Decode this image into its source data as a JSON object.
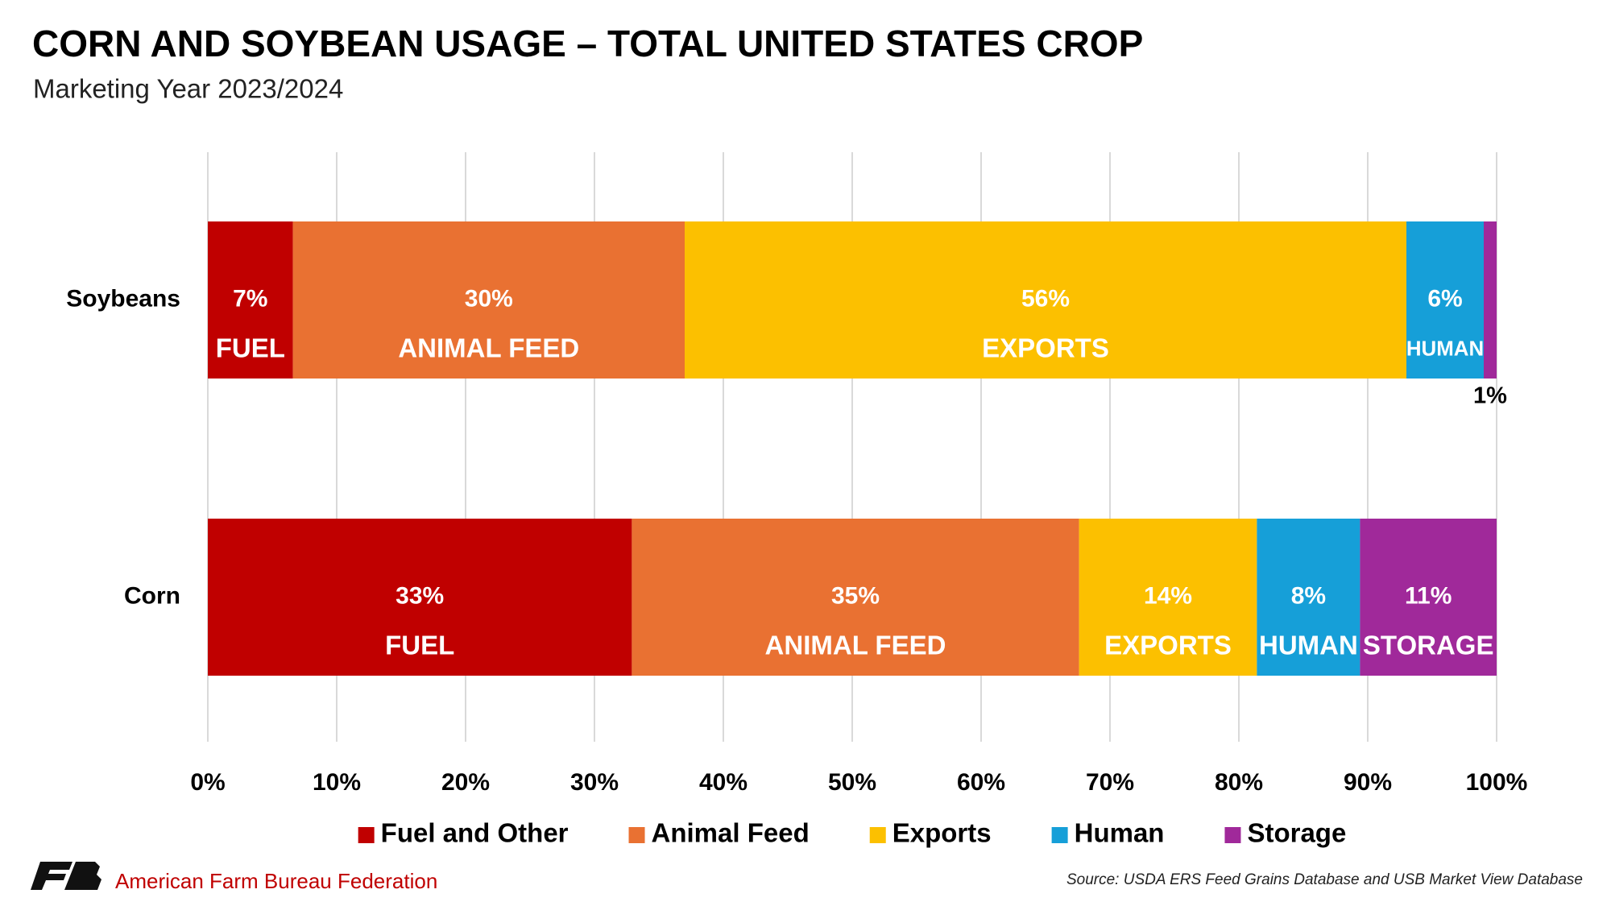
{
  "chart_data": {
    "type": "stacked-bar-horizontal",
    "title": "CORN AND SOYBEAN USAGE – TOTAL UNITED STATES CROP",
    "subtitle": "Marketing Year 2023/2024",
    "categories": [
      "Soybeans",
      "Corn"
    ],
    "series": [
      {
        "name": "Fuel and Other",
        "color": "#c00000",
        "values": [
          6.6,
          32.9
        ],
        "value_labels": [
          "7%",
          "33%"
        ],
        "segment_labels": [
          "FUEL",
          "FUEL"
        ]
      },
      {
        "name": "Animal Feed",
        "color": "#e97132",
        "values": [
          30.4,
          34.7
        ],
        "value_labels": [
          "30%",
          "35%"
        ],
        "segment_labels": [
          "ANIMAL FEED",
          "ANIMAL FEED"
        ]
      },
      {
        "name": "Exports",
        "color": "#fcc000",
        "values": [
          56,
          13.8
        ],
        "value_labels": [
          "56%",
          "14%"
        ],
        "segment_labels": [
          "EXPORTS",
          "EXPORTS"
        ]
      },
      {
        "name": "Human",
        "color": "#169fd8",
        "values": [
          6,
          8.0
        ],
        "value_labels": [
          "6%",
          "8%"
        ],
        "segment_labels": [
          "HUMAN",
          "HUMAN"
        ]
      },
      {
        "name": "Storage",
        "color": "#a0299a",
        "values": [
          1,
          10.6
        ],
        "value_labels": [
          "1%",
          "11%"
        ],
        "segment_labels": [
          null,
          "STORAGE"
        ]
      }
    ],
    "xlim": [
      0,
      100
    ],
    "xticks": [
      {
        "value": 0,
        "label": "0%"
      },
      {
        "value": 10,
        "label": "10%"
      },
      {
        "value": 20,
        "label": "20%"
      },
      {
        "value": 30,
        "label": "30%"
      },
      {
        "value": 40,
        "label": "40%"
      },
      {
        "value": 50,
        "label": "50%"
      },
      {
        "value": 60,
        "label": "60%"
      },
      {
        "value": 70,
        "label": "70%"
      },
      {
        "value": 80,
        "label": "80%"
      },
      {
        "value": 90,
        "label": "90%"
      },
      {
        "value": 100,
        "label": "100%"
      }
    ],
    "grid": true
  },
  "footer": {
    "organization": "American Farm Bureau Federation",
    "source": "Source: USDA ERS Feed Grains Database and USB Market View Database"
  }
}
